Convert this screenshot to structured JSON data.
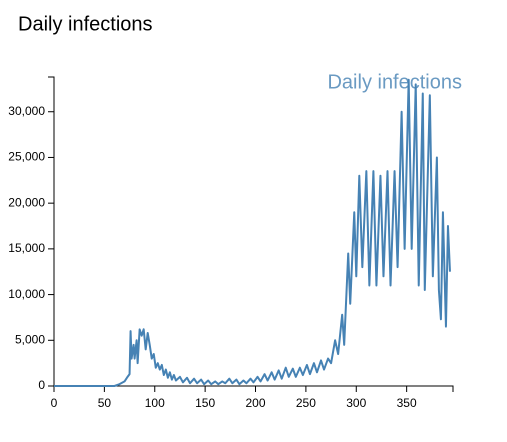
{
  "chart_data": {
    "type": "line",
    "title": "Daily infections",
    "x": [
      0,
      60,
      65,
      70,
      73,
      75,
      76,
      77,
      79,
      80,
      82,
      83,
      85,
      87,
      89,
      91,
      93,
      95,
      97,
      99,
      101,
      103,
      105,
      107,
      109,
      111,
      113,
      115,
      117,
      119,
      121,
      125,
      128,
      132,
      135,
      139,
      142,
      146,
      149,
      153,
      156,
      160,
      163,
      167,
      170,
      174,
      177,
      181,
      184,
      188,
      191,
      195,
      198,
      202,
      205,
      209,
      212,
      216,
      219,
      223,
      226,
      230,
      233,
      237,
      240,
      244,
      247,
      251,
      254,
      258,
      261,
      265,
      268,
      272,
      275,
      279,
      282,
      286,
      288,
      292,
      294,
      298,
      300,
      303,
      306,
      310,
      313,
      317,
      320,
      324,
      327,
      331,
      334,
      338,
      341,
      345,
      348,
      352,
      355,
      359,
      362,
      366,
      368,
      373,
      376,
      380,
      382,
      384,
      386,
      389,
      391,
      393
    ],
    "series": [
      {
        "name": "Daily infections",
        "color": "#4682b4",
        "values": [
          0,
          0,
          200,
          500,
          1000,
          1300,
          6000,
          3000,
          4500,
          3000,
          5000,
          2500,
          6200,
          5500,
          6200,
          4000,
          5800,
          4500,
          3000,
          3500,
          2000,
          2500,
          1800,
          2300,
          1200,
          1800,
          900,
          1500,
          700,
          1200,
          600,
          1000,
          400,
          900,
          300,
          800,
          300,
          700,
          200,
          600,
          200,
          500,
          200,
          500,
          300,
          800,
          300,
          700,
          200,
          600,
          300,
          800,
          400,
          1000,
          500,
          1300,
          600,
          1500,
          700,
          1700,
          800,
          2000,
          1000,
          1900,
          1000,
          2000,
          1200,
          2300,
          1300,
          2500,
          1500,
          2800,
          1800,
          3000,
          2500,
          5000,
          3500,
          7800,
          4500,
          14500,
          9000,
          19000,
          12000,
          23000,
          13000,
          23500,
          11000,
          23500,
          11000,
          23000,
          12000,
          23500,
          11000,
          23500,
          13000,
          30000,
          15000,
          33500,
          15000,
          33000,
          11000,
          32000,
          10500,
          31800,
          12000,
          25000,
          10500,
          7300,
          19000,
          6500,
          17500,
          12500
        ]
      }
    ],
    "xlim": [
      0,
      396
    ],
    "xticks": [
      0,
      50,
      100,
      150,
      200,
      250,
      300,
      350
    ],
    "ylim": [
      0,
      33800
    ],
    "yticks": [
      0,
      {
        "value": 5000,
        "label": "5,000"
      },
      {
        "value": 10000,
        "label": "10,000"
      },
      {
        "value": 15000,
        "label": "15,000"
      },
      {
        "value": 20000,
        "label": "20,000"
      },
      {
        "value": 25000,
        "label": "25,000"
      },
      {
        "value": 30000,
        "label": "30,000"
      }
    ]
  }
}
